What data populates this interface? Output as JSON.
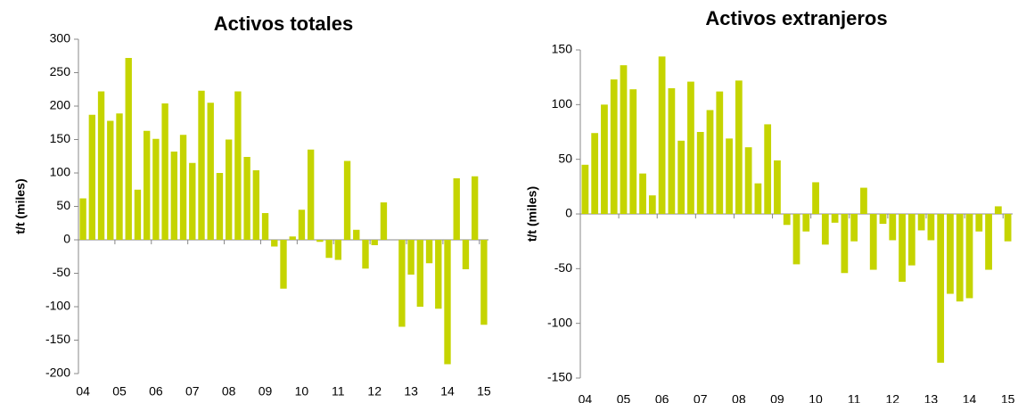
{
  "chart_data": [
    {
      "type": "bar",
      "title": "Activos totales",
      "y_label": "t/t (miles)",
      "color": "#c5d400",
      "categories": [
        "04",
        null,
        null,
        null,
        "05",
        null,
        null,
        null,
        "06",
        null,
        null,
        null,
        "07",
        null,
        null,
        null,
        "08",
        null,
        null,
        null,
        "09",
        null,
        null,
        null,
        "10",
        null,
        null,
        null,
        "11",
        null,
        null,
        null,
        "12",
        null,
        null,
        null,
        "13",
        null,
        null,
        null,
        "14",
        null,
        null,
        null,
        "15"
      ],
      "values": [
        62,
        187,
        222,
        178,
        189,
        272,
        75,
        163,
        151,
        204,
        132,
        157,
        115,
        223,
        205,
        100,
        150,
        222,
        124,
        104,
        40,
        -10,
        -73,
        5,
        45,
        135,
        -3,
        -27,
        -30,
        118,
        15,
        -43,
        -8,
        56,
        0,
        -130,
        -52,
        -100,
        -35,
        -103,
        -186,
        92,
        -44,
        95,
        -127
      ],
      "ylim": [
        -200,
        300
      ],
      "yticks": [
        -200,
        -150,
        -100,
        -50,
        0,
        50,
        100,
        150,
        200,
        250,
        300
      ]
    },
    {
      "type": "bar",
      "title": "Activos extranjeros",
      "y_label": "t/t (miles)",
      "color": "#c5d400",
      "categories": [
        "04",
        null,
        null,
        null,
        "05",
        null,
        null,
        null,
        "06",
        null,
        null,
        null,
        "07",
        null,
        null,
        null,
        "08",
        null,
        null,
        null,
        "09",
        null,
        null,
        null,
        "10",
        null,
        null,
        null,
        "11",
        null,
        null,
        null,
        "12",
        null,
        null,
        null,
        "13",
        null,
        null,
        null,
        "14",
        null,
        null,
        null,
        "15"
      ],
      "values": [
        45,
        74,
        100,
        123,
        136,
        114,
        37,
        17,
        144,
        115,
        67,
        121,
        75,
        95,
        112,
        69,
        122,
        61,
        28,
        82,
        49,
        -10,
        -46,
        -16,
        29,
        -28,
        -8,
        -54,
        -25,
        24,
        -51,
        -9,
        -24,
        -62,
        -47,
        -15,
        -24,
        -136,
        -73,
        -80,
        -77,
        -16,
        -51,
        7,
        -25
      ],
      "ylim": [
        -150,
        150
      ],
      "yticks": [
        -150,
        -100,
        -50,
        0,
        50,
        100,
        150
      ]
    }
  ]
}
